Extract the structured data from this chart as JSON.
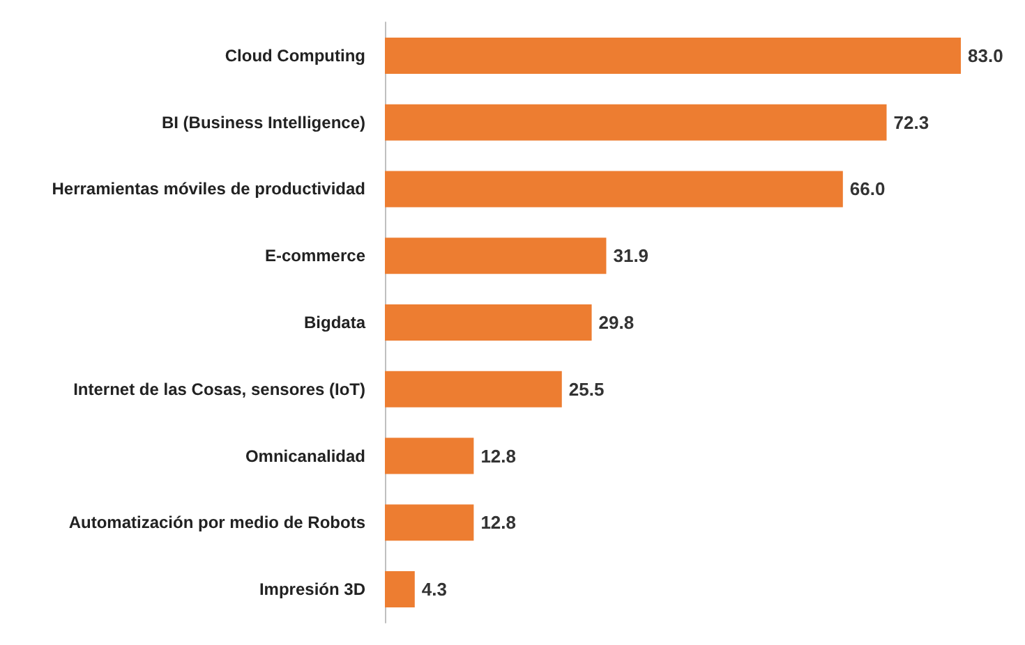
{
  "chart_data": {
    "type": "bar",
    "orientation": "horizontal",
    "categories": [
      "Cloud Computing",
      "BI (Business Intelligence)",
      "Herramientas móviles de productividad",
      "E-commerce",
      "Bigdata",
      "Internet de las Cosas, sensores (IoT)",
      "Omnicanalidad",
      "Automatización por medio de Robots",
      "Impresión 3D"
    ],
    "values": [
      83.0,
      72.3,
      66.0,
      31.9,
      29.8,
      25.5,
      12.8,
      12.8,
      4.3
    ],
    "value_labels": [
      "83.0",
      "72.3",
      "66.0",
      "31.9",
      "29.8",
      "25.5",
      "12.8",
      "12.8",
      "4.3"
    ],
    "color": "#ed7d31"
  }
}
